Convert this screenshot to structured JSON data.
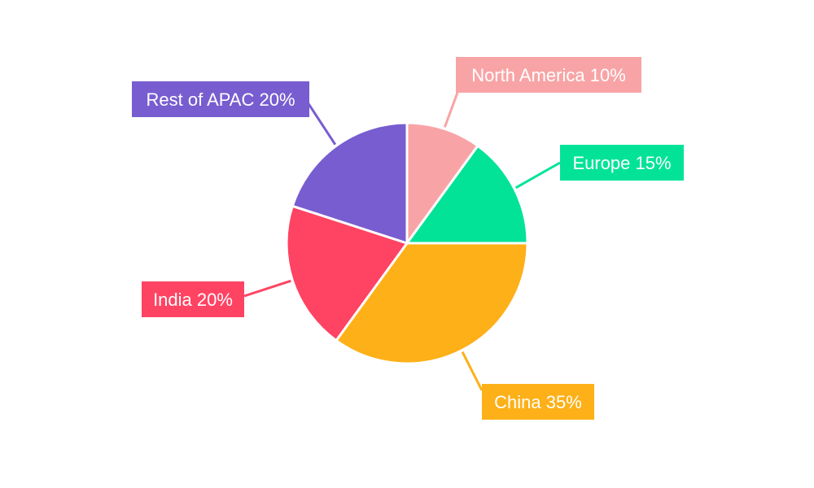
{
  "chart_data": {
    "type": "pie",
    "title": "",
    "slices": [
      {
        "label": "North America",
        "value": 10,
        "display": "North America 10%",
        "color": "#f8a4a6"
      },
      {
        "label": "Europe",
        "value": 15,
        "display": "Europe 15%",
        "color": "#02e398"
      },
      {
        "label": "China",
        "value": 35,
        "display": "China 35%",
        "color": "#fdb018"
      },
      {
        "label": "India",
        "value": 20,
        "display": "India 20%",
        "color": "#ff4363"
      },
      {
        "label": "Rest of APAC",
        "value": 20,
        "display": "Rest of APAC 20%",
        "color": "#775dd0"
      }
    ],
    "start_angle": "12 o'clock",
    "direction": "clockwise",
    "legend": "none",
    "label_style": "callout boxes with leader lines"
  }
}
